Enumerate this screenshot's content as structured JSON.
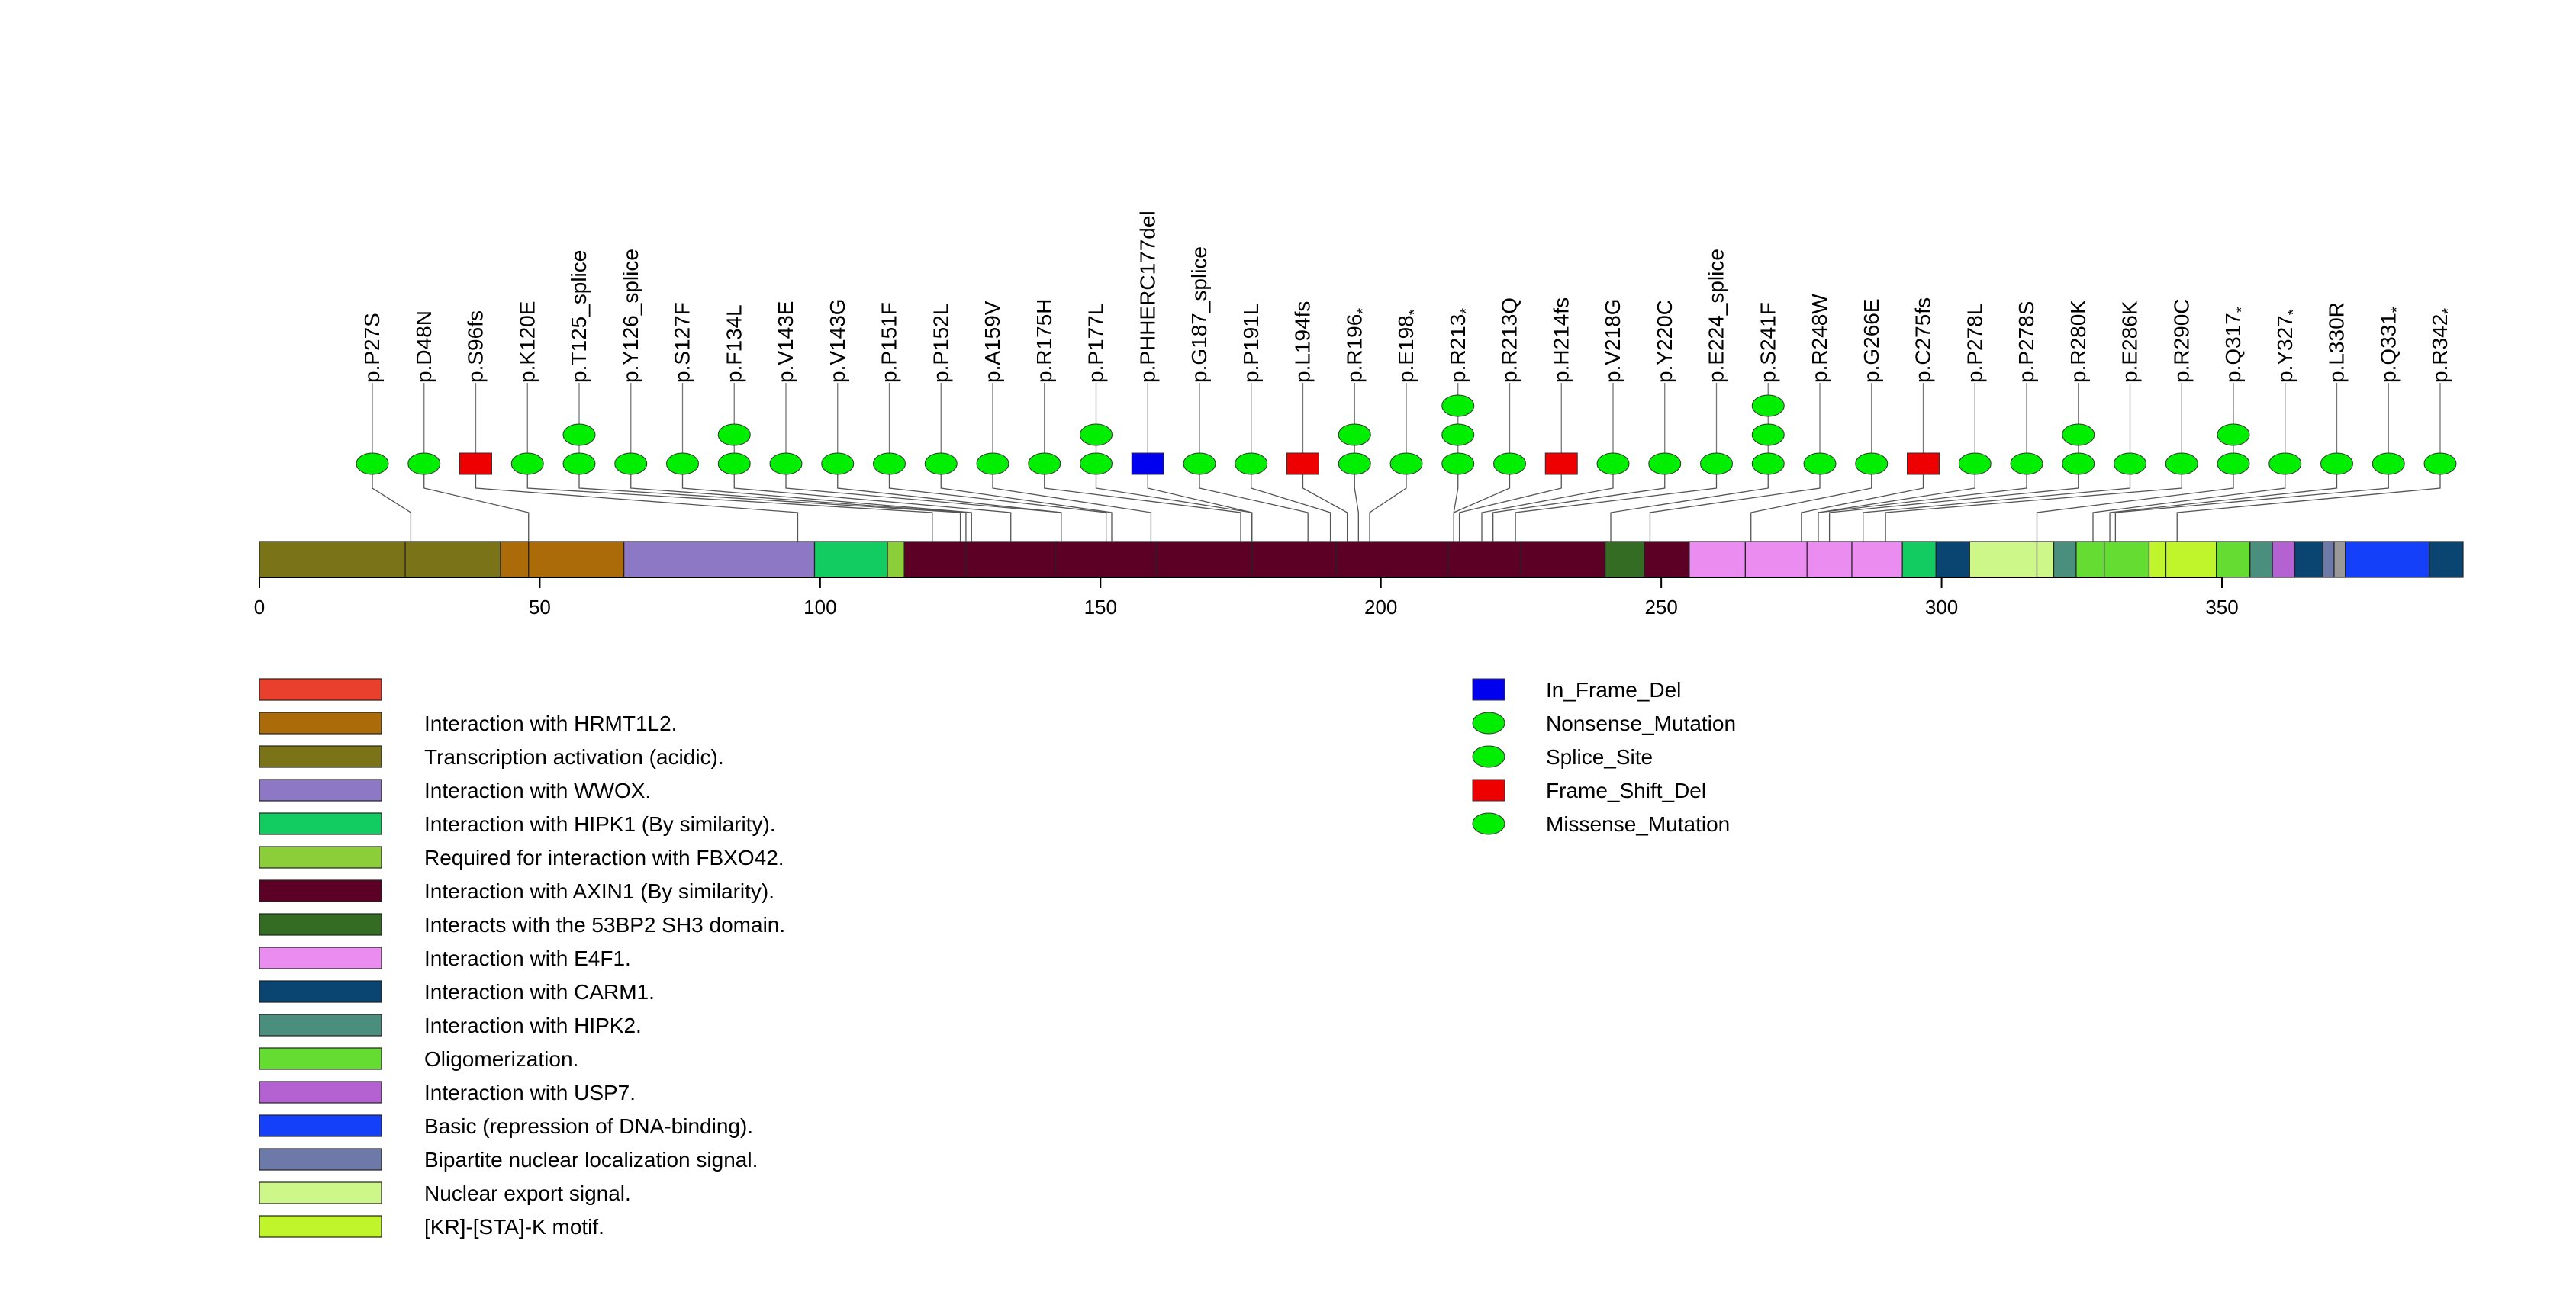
{
  "chart_data": {
    "type": "lollipop",
    "axis": {
      "min": 0,
      "max": 393,
      "ticks": [
        0,
        50,
        100,
        150,
        200,
        250,
        300,
        350
      ]
    },
    "domains": [
      {
        "start": 1,
        "end": 26,
        "feature": 1
      },
      {
        "start": 26,
        "end": 43,
        "feature": 1
      },
      {
        "start": 43,
        "end": 48,
        "feature": 0
      },
      {
        "start": 48,
        "end": 65,
        "feature": 0
      },
      {
        "start": 65,
        "end": 99,
        "feature": 2
      },
      {
        "start": 99,
        "end": 112,
        "feature": 3
      },
      {
        "start": 112,
        "end": 115,
        "feature": 4
      },
      {
        "start": 115,
        "end": 126,
        "feature": 5
      },
      {
        "start": 126,
        "end": 142,
        "feature": 5
      },
      {
        "start": 142,
        "end": 160,
        "feature": 5
      },
      {
        "start": 160,
        "end": 177,
        "feature": 5
      },
      {
        "start": 177,
        "end": 192,
        "feature": 5
      },
      {
        "start": 192,
        "end": 212,
        "feature": 5
      },
      {
        "start": 212,
        "end": 225,
        "feature": 5
      },
      {
        "start": 225,
        "end": 240,
        "feature": 5
      },
      {
        "start": 240,
        "end": 247,
        "feature": 6
      },
      {
        "start": 247,
        "end": 255,
        "feature": 5
      },
      {
        "start": 255,
        "end": 265,
        "feature": 7
      },
      {
        "start": 265,
        "end": 276,
        "feature": 7
      },
      {
        "start": 276,
        "end": 284,
        "feature": 7
      },
      {
        "start": 284,
        "end": 293,
        "feature": 7
      },
      {
        "start": 293,
        "end": 299,
        "feature": 3
      },
      {
        "start": 299,
        "end": 305,
        "feature": 8
      },
      {
        "start": 305,
        "end": 317,
        "feature": 14
      },
      {
        "start": 317,
        "end": 320,
        "feature": 14
      },
      {
        "start": 320,
        "end": 324,
        "feature": 9
      },
      {
        "start": 324,
        "end": 329,
        "feature": 10
      },
      {
        "start": 329,
        "end": 337,
        "feature": 10
      },
      {
        "start": 337,
        "end": 340,
        "feature": 15
      },
      {
        "start": 340,
        "end": 349,
        "feature": 15
      },
      {
        "start": 349,
        "end": 355,
        "feature": 10
      },
      {
        "start": 355,
        "end": 359,
        "feature": 9
      },
      {
        "start": 359,
        "end": 363,
        "feature": 11
      },
      {
        "start": 363,
        "end": 368,
        "feature": 8
      },
      {
        "start": 368,
        "end": 370,
        "feature": 13
      },
      {
        "start": 370,
        "end": 372,
        "feature": 16
      },
      {
        "start": 372,
        "end": 387,
        "feature": 12
      },
      {
        "start": 387,
        "end": 393,
        "feature": 8
      }
    ],
    "domain_legend": [
      {
        "label": "",
        "color": "#e8402c"
      },
      {
        "label": "Interaction with HRMT1L2.",
        "color": "#ab6b09"
      },
      {
        "label": "Transcription activation (acidic).",
        "color": "#7b7318"
      },
      {
        "label": "Interaction with WWOX.",
        "color": "#8c78c4"
      },
      {
        "label": "Interaction with HIPK1 (By similarity).",
        "color": "#12cc62"
      },
      {
        "label": "Required for interaction with FBXO42.",
        "color": "#8ccd3a"
      },
      {
        "label": "Interaction with AXIN1 (By similarity).",
        "color": "#5c0026"
      },
      {
        "label": "Interacts with the 53BP2 SH3 domain.",
        "color": "#346c24"
      },
      {
        "label": "Interaction with E4F1.",
        "color": "#ea8cf0"
      },
      {
        "label": "Interaction with CARM1.",
        "color": "#0a4470"
      },
      {
        "label": "Interaction with HIPK2.",
        "color": "#4a8e7e"
      },
      {
        "label": "Oligomerization.",
        "color": "#64dc32"
      },
      {
        "label": "Interaction with USP7.",
        "color": "#b462d2"
      },
      {
        "label": "Basic (repression of DNA-binding).",
        "color": "#1440fa"
      },
      {
        "label": "Bipartite nuclear localization signal.",
        "color": "#6d79a8"
      },
      {
        "label": "Nuclear export signal.",
        "color": "#cdf788"
      },
      {
        "label": "[KR]-[STA]-K motif.",
        "color": "#bff52a"
      }
    ],
    "mutation_legend": [
      {
        "label": "In_Frame_Del",
        "shape": "square",
        "color": "#0000ee"
      },
      {
        "label": "Nonsense_Mutation",
        "shape": "ellipse",
        "color": "#00ee00"
      },
      {
        "label": "Splice_Site",
        "shape": "ellipse",
        "color": "#00ee00"
      },
      {
        "label": "Frame_Shift_Del",
        "shape": "square",
        "color": "#ee0000"
      },
      {
        "label": "Missense_Mutation",
        "shape": "ellipse",
        "color": "#00ee00"
      }
    ],
    "mutations": [
      {
        "label": "p.P27S",
        "pos": 27,
        "type": "Missense_Mutation",
        "count": 1
      },
      {
        "label": "p.D48N",
        "pos": 48,
        "type": "Missense_Mutation",
        "count": 1
      },
      {
        "label": "p.S96fs",
        "pos": 96,
        "type": "Frame_Shift_Del",
        "count": 1
      },
      {
        "label": "p.K120E",
        "pos": 120,
        "type": "Missense_Mutation",
        "count": 1
      },
      {
        "label": "p.T125_splice",
        "pos": 125,
        "type": "Splice_Site",
        "count": 2
      },
      {
        "label": "p.Y126_splice",
        "pos": 126,
        "type": "Splice_Site",
        "count": 1
      },
      {
        "label": "p.S127F",
        "pos": 127,
        "type": "Missense_Mutation",
        "count": 1
      },
      {
        "label": "p.F134L",
        "pos": 134,
        "type": "Missense_Mutation",
        "count": 2
      },
      {
        "label": "p.V143E",
        "pos": 143,
        "type": "Missense_Mutation",
        "count": 1
      },
      {
        "label": "p.V143G",
        "pos": 143,
        "type": "Missense_Mutation",
        "count": 1
      },
      {
        "label": "p.P151F",
        "pos": 151,
        "type": "Missense_Mutation",
        "count": 1
      },
      {
        "label": "p.P152L",
        "pos": 152,
        "type": "Missense_Mutation",
        "count": 1
      },
      {
        "label": "p.A159V",
        "pos": 159,
        "type": "Missense_Mutation",
        "count": 1
      },
      {
        "label": "p.R175H",
        "pos": 175,
        "type": "Missense_Mutation",
        "count": 1
      },
      {
        "label": "p.P177L",
        "pos": 177,
        "type": "Missense_Mutation",
        "count": 2
      },
      {
        "label": "p.PHHERC177del",
        "pos": 177,
        "type": "In_Frame_Del",
        "count": 1
      },
      {
        "label": "p.G187_splice",
        "pos": 187,
        "type": "Splice_Site",
        "count": 1
      },
      {
        "label": "p.P191L",
        "pos": 191,
        "type": "Missense_Mutation",
        "count": 1
      },
      {
        "label": "p.L194fs",
        "pos": 194,
        "type": "Frame_Shift_Del",
        "count": 1
      },
      {
        "label": "p.R196",
        "pos": 196,
        "type": "Nonsense_Mutation",
        "count": 2,
        "star": "*"
      },
      {
        "label": "p.E198",
        "pos": 198,
        "type": "Nonsense_Mutation",
        "count": 1,
        "star": "*"
      },
      {
        "label": "p.R213",
        "pos": 213,
        "type": "Nonsense_Mutation",
        "count": 3,
        "star": "*"
      },
      {
        "label": "p.R213Q",
        "pos": 213,
        "type": "Missense_Mutation",
        "count": 1
      },
      {
        "label": "p.H214fs",
        "pos": 214,
        "type": "Frame_Shift_Del",
        "count": 1
      },
      {
        "label": "p.V218G",
        "pos": 218,
        "type": "Missense_Mutation",
        "count": 1
      },
      {
        "label": "p.Y220C",
        "pos": 220,
        "type": "Missense_Mutation",
        "count": 1
      },
      {
        "label": "p.E224_splice",
        "pos": 224,
        "type": "Splice_Site",
        "count": 1
      },
      {
        "label": "p.S241F",
        "pos": 241,
        "type": "Missense_Mutation",
        "count": 3
      },
      {
        "label": "p.R248W",
        "pos": 248,
        "type": "Missense_Mutation",
        "count": 1
      },
      {
        "label": "p.G266E",
        "pos": 266,
        "type": "Missense_Mutation",
        "count": 1
      },
      {
        "label": "p.C275fs",
        "pos": 275,
        "type": "Frame_Shift_Del",
        "count": 1
      },
      {
        "label": "p.P278L",
        "pos": 278,
        "type": "Missense_Mutation",
        "count": 1
      },
      {
        "label": "p.P278S",
        "pos": 278,
        "type": "Missense_Mutation",
        "count": 1
      },
      {
        "label": "p.R280K",
        "pos": 280,
        "type": "Missense_Mutation",
        "count": 2
      },
      {
        "label": "p.E286K",
        "pos": 286,
        "type": "Missense_Mutation",
        "count": 1
      },
      {
        "label": "p.R290C",
        "pos": 290,
        "type": "Missense_Mutation",
        "count": 1
      },
      {
        "label": "p.Q317",
        "pos": 317,
        "type": "Nonsense_Mutation",
        "count": 2,
        "star": "*"
      },
      {
        "label": "p.Y327",
        "pos": 327,
        "type": "Nonsense_Mutation",
        "count": 1,
        "star": "*"
      },
      {
        "label": "p.L330R",
        "pos": 330,
        "type": "Missense_Mutation",
        "count": 1
      },
      {
        "label": "p.Q331",
        "pos": 331,
        "type": "Nonsense_Mutation",
        "count": 1,
        "star": "*"
      },
      {
        "label": "p.R342",
        "pos": 342,
        "type": "Nonsense_Mutation",
        "count": 1,
        "star": "*"
      }
    ]
  }
}
